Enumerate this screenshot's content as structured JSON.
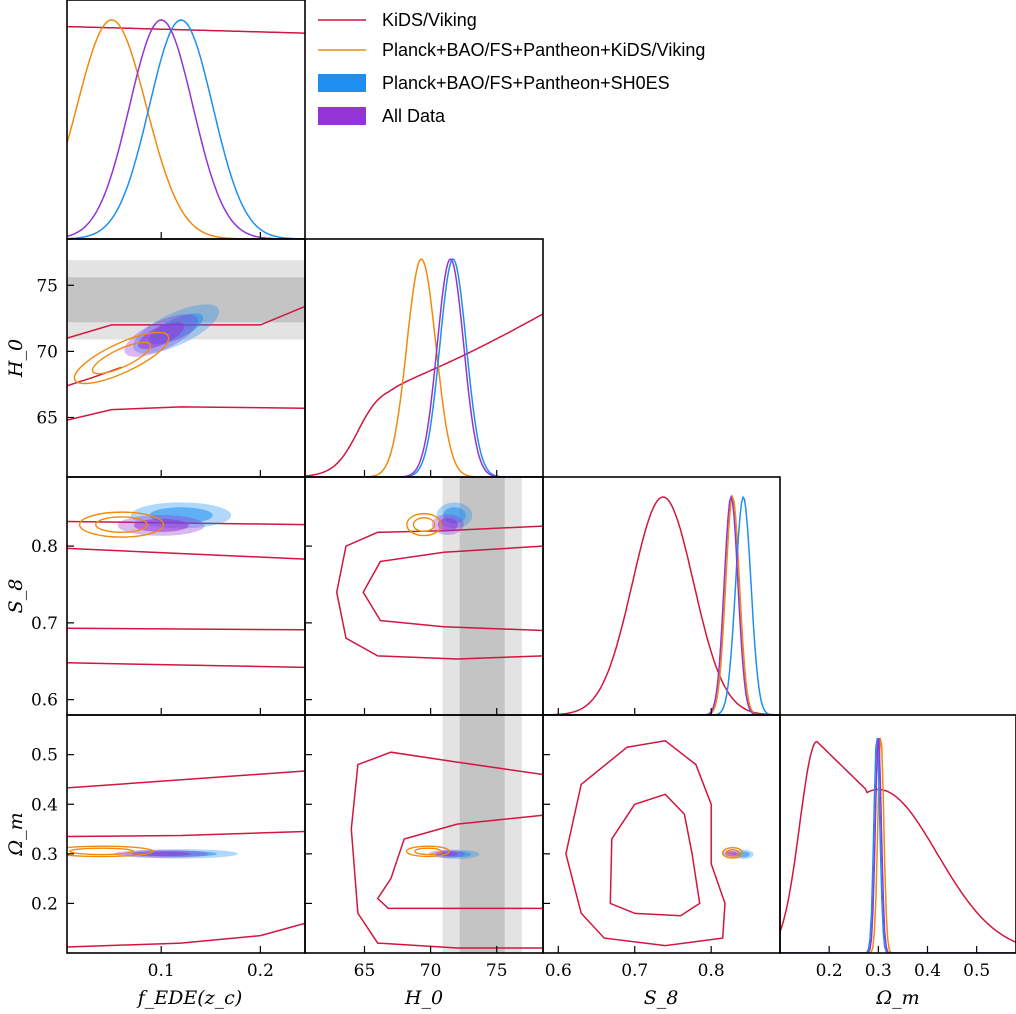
{
  "colors": {
    "kids": "#d1163f",
    "planck_kids": "#f08a0c",
    "shoes": "#1e8ff0",
    "all": "#9433d6",
    "band_outer": "#e3e3e3",
    "band_inner": "#c4c4c4"
  },
  "chart_data": {
    "type": "triangle-corner",
    "parameters": [
      {
        "key": "fede",
        "label": "f_EDE(z_c)",
        "ticks": [
          0.1,
          0.2
        ],
        "range": [
          0.005,
          0.245
        ]
      },
      {
        "key": "h0",
        "label": "H_0",
        "ticks": [
          65,
          70,
          75
        ],
        "range": [
          60.5,
          78.5
        ]
      },
      {
        "key": "s8",
        "label": "S_8",
        "ticks": [
          0.6,
          0.7,
          0.8
        ],
        "range": [
          0.58,
          0.89
        ]
      },
      {
        "key": "om",
        "label": "Ω_m",
        "ticks": [
          0.2,
          0.3,
          0.4,
          0.5
        ],
        "range": [
          0.1,
          0.58
        ]
      }
    ],
    "legend": [
      {
        "name": "KiDS/Viking",
        "style": "line",
        "color": "#d1163f"
      },
      {
        "name": "Planck+BAO/FS+Pantheon+KiDS/Viking",
        "style": "line",
        "color": "#f08a0c"
      },
      {
        "name": "Planck+BAO/FS+Pantheon+SH0ES",
        "style": "filled",
        "color": "#1e8ff0"
      },
      {
        "name": "All Data",
        "style": "filled",
        "color": "#9433d6"
      }
    ],
    "shoes_h0_band": {
      "inner": [
        72.2,
        75.6
      ],
      "outer": [
        70.9,
        76.9
      ]
    },
    "marginals": {
      "fede": [
        {
          "series": "KiDS/Viking",
          "type": "flat",
          "value": 0.97
        },
        {
          "series": "Planck+BAO/FS+Pantheon+KiDS/Viking",
          "type": "gauss",
          "mean": 0.05,
          "sigma": 0.035
        },
        {
          "series": "Planck+BAO/FS+Pantheon+SH0ES",
          "type": "gauss",
          "mean": 0.12,
          "sigma": 0.032
        },
        {
          "series": "All Data",
          "type": "gauss",
          "mean": 0.1,
          "sigma": 0.032
        }
      ],
      "h0": [
        {
          "series": "KiDS/Viking",
          "type": "rising"
        },
        {
          "series": "Planck+BAO/FS+Pantheon+KiDS/Viking",
          "type": "gauss",
          "mean": 69.3,
          "sigma": 1.1
        },
        {
          "series": "Planck+BAO/FS+Pantheon+SH0ES",
          "type": "gauss",
          "mean": 71.7,
          "sigma": 1.0
        },
        {
          "series": "All Data",
          "type": "gauss",
          "mean": 71.5,
          "sigma": 1.0
        }
      ],
      "s8": [
        {
          "series": "KiDS/Viking",
          "type": "gauss",
          "mean": 0.737,
          "sigma": 0.04
        },
        {
          "series": "Planck+BAO/FS+Pantheon+KiDS/Viking",
          "type": "gauss",
          "mean": 0.828,
          "sigma": 0.009
        },
        {
          "series": "Planck+BAO/FS+Pantheon+SH0ES",
          "type": "gauss",
          "mean": 0.842,
          "sigma": 0.01
        },
        {
          "series": "All Data",
          "type": "gauss",
          "mean": 0.826,
          "sigma": 0.009
        }
      ],
      "om": [
        {
          "series": "KiDS/Viking",
          "type": "skewed",
          "peak": 0.175
        },
        {
          "series": "Planck+BAO/FS+Pantheon+KiDS/Viking",
          "type": "gauss",
          "mean": 0.305,
          "sigma": 0.006
        },
        {
          "series": "Planck+BAO/FS+Pantheon+SH0ES",
          "type": "gauss",
          "mean": 0.297,
          "sigma": 0.006
        },
        {
          "series": "All Data",
          "type": "gauss",
          "mean": 0.3,
          "sigma": 0.006
        }
      ]
    },
    "contours_2d": {
      "h0_fede": {
        "all": {
          "center": [
            0.1,
            71.2
          ],
          "width": 0.06,
          "height": 1.6,
          "angle": 25
        },
        "shoes": {
          "center": [
            0.115,
            71.7
          ],
          "width": 0.07,
          "height": 1.8,
          "angle": 25
        },
        "planck_kids": {
          "center": [
            0.06,
            69.5
          ],
          "width": 0.08,
          "height": 1.7,
          "angle": 25
        }
      },
      "s8_fede": {
        "all": {
          "center": [
            0.1,
            0.827
          ],
          "width": 0.065,
          "height": 0.02
        },
        "shoes": {
          "center": [
            0.12,
            0.84
          ],
          "width": 0.075,
          "height": 0.025
        },
        "planck_kids": {
          "center": [
            0.06,
            0.828
          ],
          "width": 0.065,
          "height": 0.025
        }
      },
      "om_fede": {
        "all": {
          "center": [
            0.1,
            0.3
          ],
          "width": 0.07,
          "height": 0.012
        },
        "shoes": {
          "center": [
            0.12,
            0.3
          ],
          "width": 0.085,
          "height": 0.014
        },
        "planck_kids": {
          "center": [
            0.04,
            0.305
          ],
          "width": 0.08,
          "height": 0.016
        }
      },
      "s8_h0": {
        "all": {
          "center": [
            71.3,
            0.828
          ],
          "width": 1.8,
          "height": 0.02
        },
        "shoes": {
          "center": [
            71.8,
            0.84
          ],
          "width": 2.0,
          "height": 0.025
        },
        "planck_kids": {
          "center": [
            69.5,
            0.828
          ],
          "width": 2.0,
          "height": 0.022
        }
      },
      "om_h0": {
        "all": {
          "center": [
            71.2,
            0.3
          ],
          "width": 2.0,
          "height": 0.012
        },
        "shoes": {
          "center": [
            72.0,
            0.299
          ],
          "width": 2.5,
          "height": 0.014
        },
        "planck_kids": {
          "center": [
            69.8,
            0.305
          ],
          "width": 2.5,
          "height": 0.016
        }
      },
      "om_s8": {
        "all": {
          "center": [
            0.826,
            0.3
          ],
          "width": 0.018,
          "height": 0.012
        },
        "shoes": {
          "center": [
            0.842,
            0.299
          ],
          "width": 0.02,
          "height": 0.014
        },
        "planck_kids": {
          "center": [
            0.828,
            0.302
          ],
          "width": 0.02,
          "height": 0.016
        }
      }
    }
  }
}
